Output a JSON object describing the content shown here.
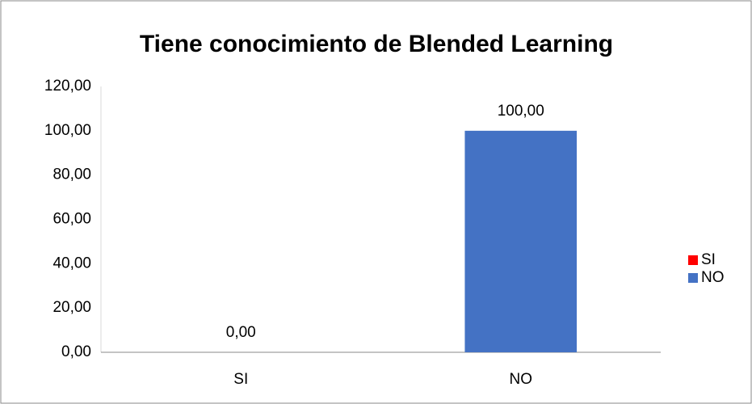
{
  "chart_data": {
    "type": "bar",
    "title": "Tiene conocimiento de Blended Learning",
    "categories": [
      "SI",
      "NO"
    ],
    "values": [
      0,
      100
    ],
    "value_labels": [
      "0,00",
      "100,00"
    ],
    "colors": [
      "#ff0000",
      "#4472c4"
    ],
    "ylim": [
      0,
      120
    ],
    "yticks": [
      {
        "value": 0,
        "label": "0,00"
      },
      {
        "value": 20,
        "label": "20,00"
      },
      {
        "value": 40,
        "label": "40,00"
      },
      {
        "value": 60,
        "label": "60,00"
      },
      {
        "value": 80,
        "label": "80,00"
      },
      {
        "value": 100,
        "label": "100,00"
      },
      {
        "value": 120,
        "label": "120,00"
      }
    ],
    "grid": false,
    "legend": "right"
  }
}
